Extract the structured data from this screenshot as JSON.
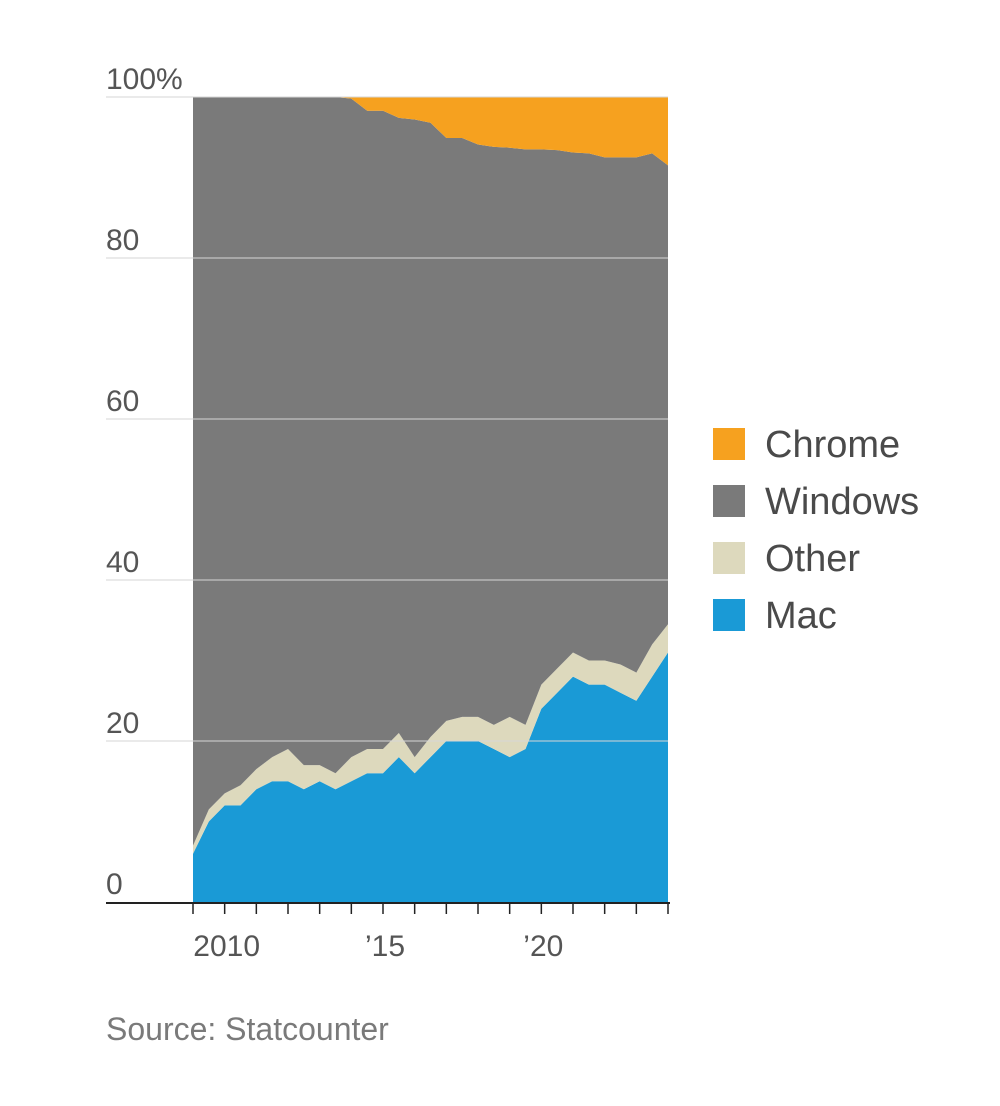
{
  "chart_data": {
    "type": "area",
    "stacked": true,
    "source": "Source: Statcounter",
    "x_range": [
      2009.0,
      2024.0
    ],
    "ylim": [
      0,
      100
    ],
    "y_ticks": [
      0,
      20,
      40,
      60,
      80,
      100
    ],
    "y_tick_labels": [
      "0",
      "20",
      "40",
      "60",
      "80",
      "100%"
    ],
    "x_ticks": [
      2010,
      2015,
      2020
    ],
    "x_tick_labels": [
      "2010",
      "’15",
      "’20"
    ],
    "grid": true,
    "legend_position": "right",
    "x": [
      2009.0,
      2009.5,
      2010.0,
      2010.5,
      2011.0,
      2011.5,
      2012.0,
      2012.5,
      2013.0,
      2013.5,
      2014.0,
      2014.5,
      2015.0,
      2015.5,
      2016.0,
      2016.5,
      2017.0,
      2017.5,
      2018.0,
      2018.5,
      2019.0,
      2019.5,
      2020.0,
      2020.5,
      2021.0,
      2021.5,
      2022.0,
      2022.5,
      2023.0,
      2023.5,
      2024.0
    ],
    "series": [
      {
        "name": "Mac",
        "color": "#1a9ad6",
        "values": [
          6,
          10,
          12,
          12,
          14,
          15,
          15,
          14,
          15,
          14,
          15,
          16,
          16,
          18,
          16,
          18,
          20,
          20,
          20,
          19,
          18,
          19,
          24,
          26,
          28,
          27,
          27,
          26,
          25,
          28,
          31
        ]
      },
      {
        "name": "Other",
        "color": "#ddd9bd",
        "values": [
          1,
          1.5,
          1.5,
          2.5,
          2.5,
          3,
          4,
          3,
          2,
          2,
          3,
          3,
          3,
          3,
          2,
          2.5,
          2.5,
          3,
          3,
          3,
          5,
          3,
          3,
          3,
          3,
          3,
          3,
          3.5,
          3.5,
          4,
          3.5
        ]
      },
      {
        "name": "Windows",
        "color": "#7a7a7a",
        "values": [
          93,
          88.5,
          86.5,
          85.5,
          83.5,
          82,
          81,
          83,
          83,
          84,
          81.8,
          79.3,
          79.3,
          76.4,
          79.2,
          76.3,
          72.4,
          71.9,
          71.1,
          71.8,
          70.7,
          71.5,
          66.5,
          64.4,
          62.1,
          63,
          62.5,
          63,
          64,
          61,
          57
        ]
      },
      {
        "name": "Chrome",
        "color": "#f6a11f",
        "values": [
          0,
          0,
          0,
          0,
          0,
          0,
          0,
          0,
          0,
          0,
          0.2,
          1.7,
          1.7,
          2.6,
          2.8,
          3.2,
          5.1,
          5.1,
          5.9,
          6.2,
          6.3,
          6.5,
          6.5,
          6.6,
          6.9,
          7,
          7.5,
          7.5,
          7.5,
          7,
          8.5
        ]
      }
    ],
    "legend": [
      "Chrome",
      "Windows",
      "Other",
      "Mac"
    ]
  }
}
